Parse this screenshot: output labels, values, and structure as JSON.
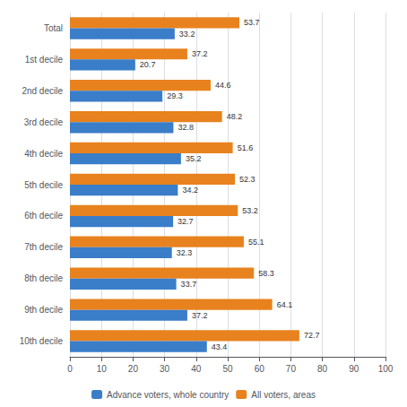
{
  "chart_data": {
    "type": "bar",
    "orientation": "horizontal",
    "categories": [
      "Total",
      "1st decile",
      "2nd decile",
      "3rd decile",
      "4th decile",
      "5th decile",
      "6th decile",
      "7th decile",
      "8th decile",
      "9th decile",
      "10th decile"
    ],
    "series": [
      {
        "name": "Advance voters, whole country",
        "color": "#3A7DC9",
        "values": [
          33.2,
          20.7,
          29.3,
          32.8,
          35.2,
          34.2,
          32.7,
          32.3,
          33.7,
          37.2,
          43.4
        ]
      },
      {
        "name": "All voters, areas",
        "color": "#E8821E",
        "values": [
          53.7,
          37.2,
          44.6,
          48.2,
          51.6,
          52.3,
          53.2,
          55.1,
          58.3,
          64.1,
          72.7
        ]
      }
    ],
    "xlim": [
      0,
      100
    ],
    "xticks": [
      0,
      10,
      20,
      30,
      40,
      50,
      60,
      70,
      80,
      90,
      100
    ],
    "grid": true,
    "data_labels": true,
    "legend": "bottom"
  }
}
